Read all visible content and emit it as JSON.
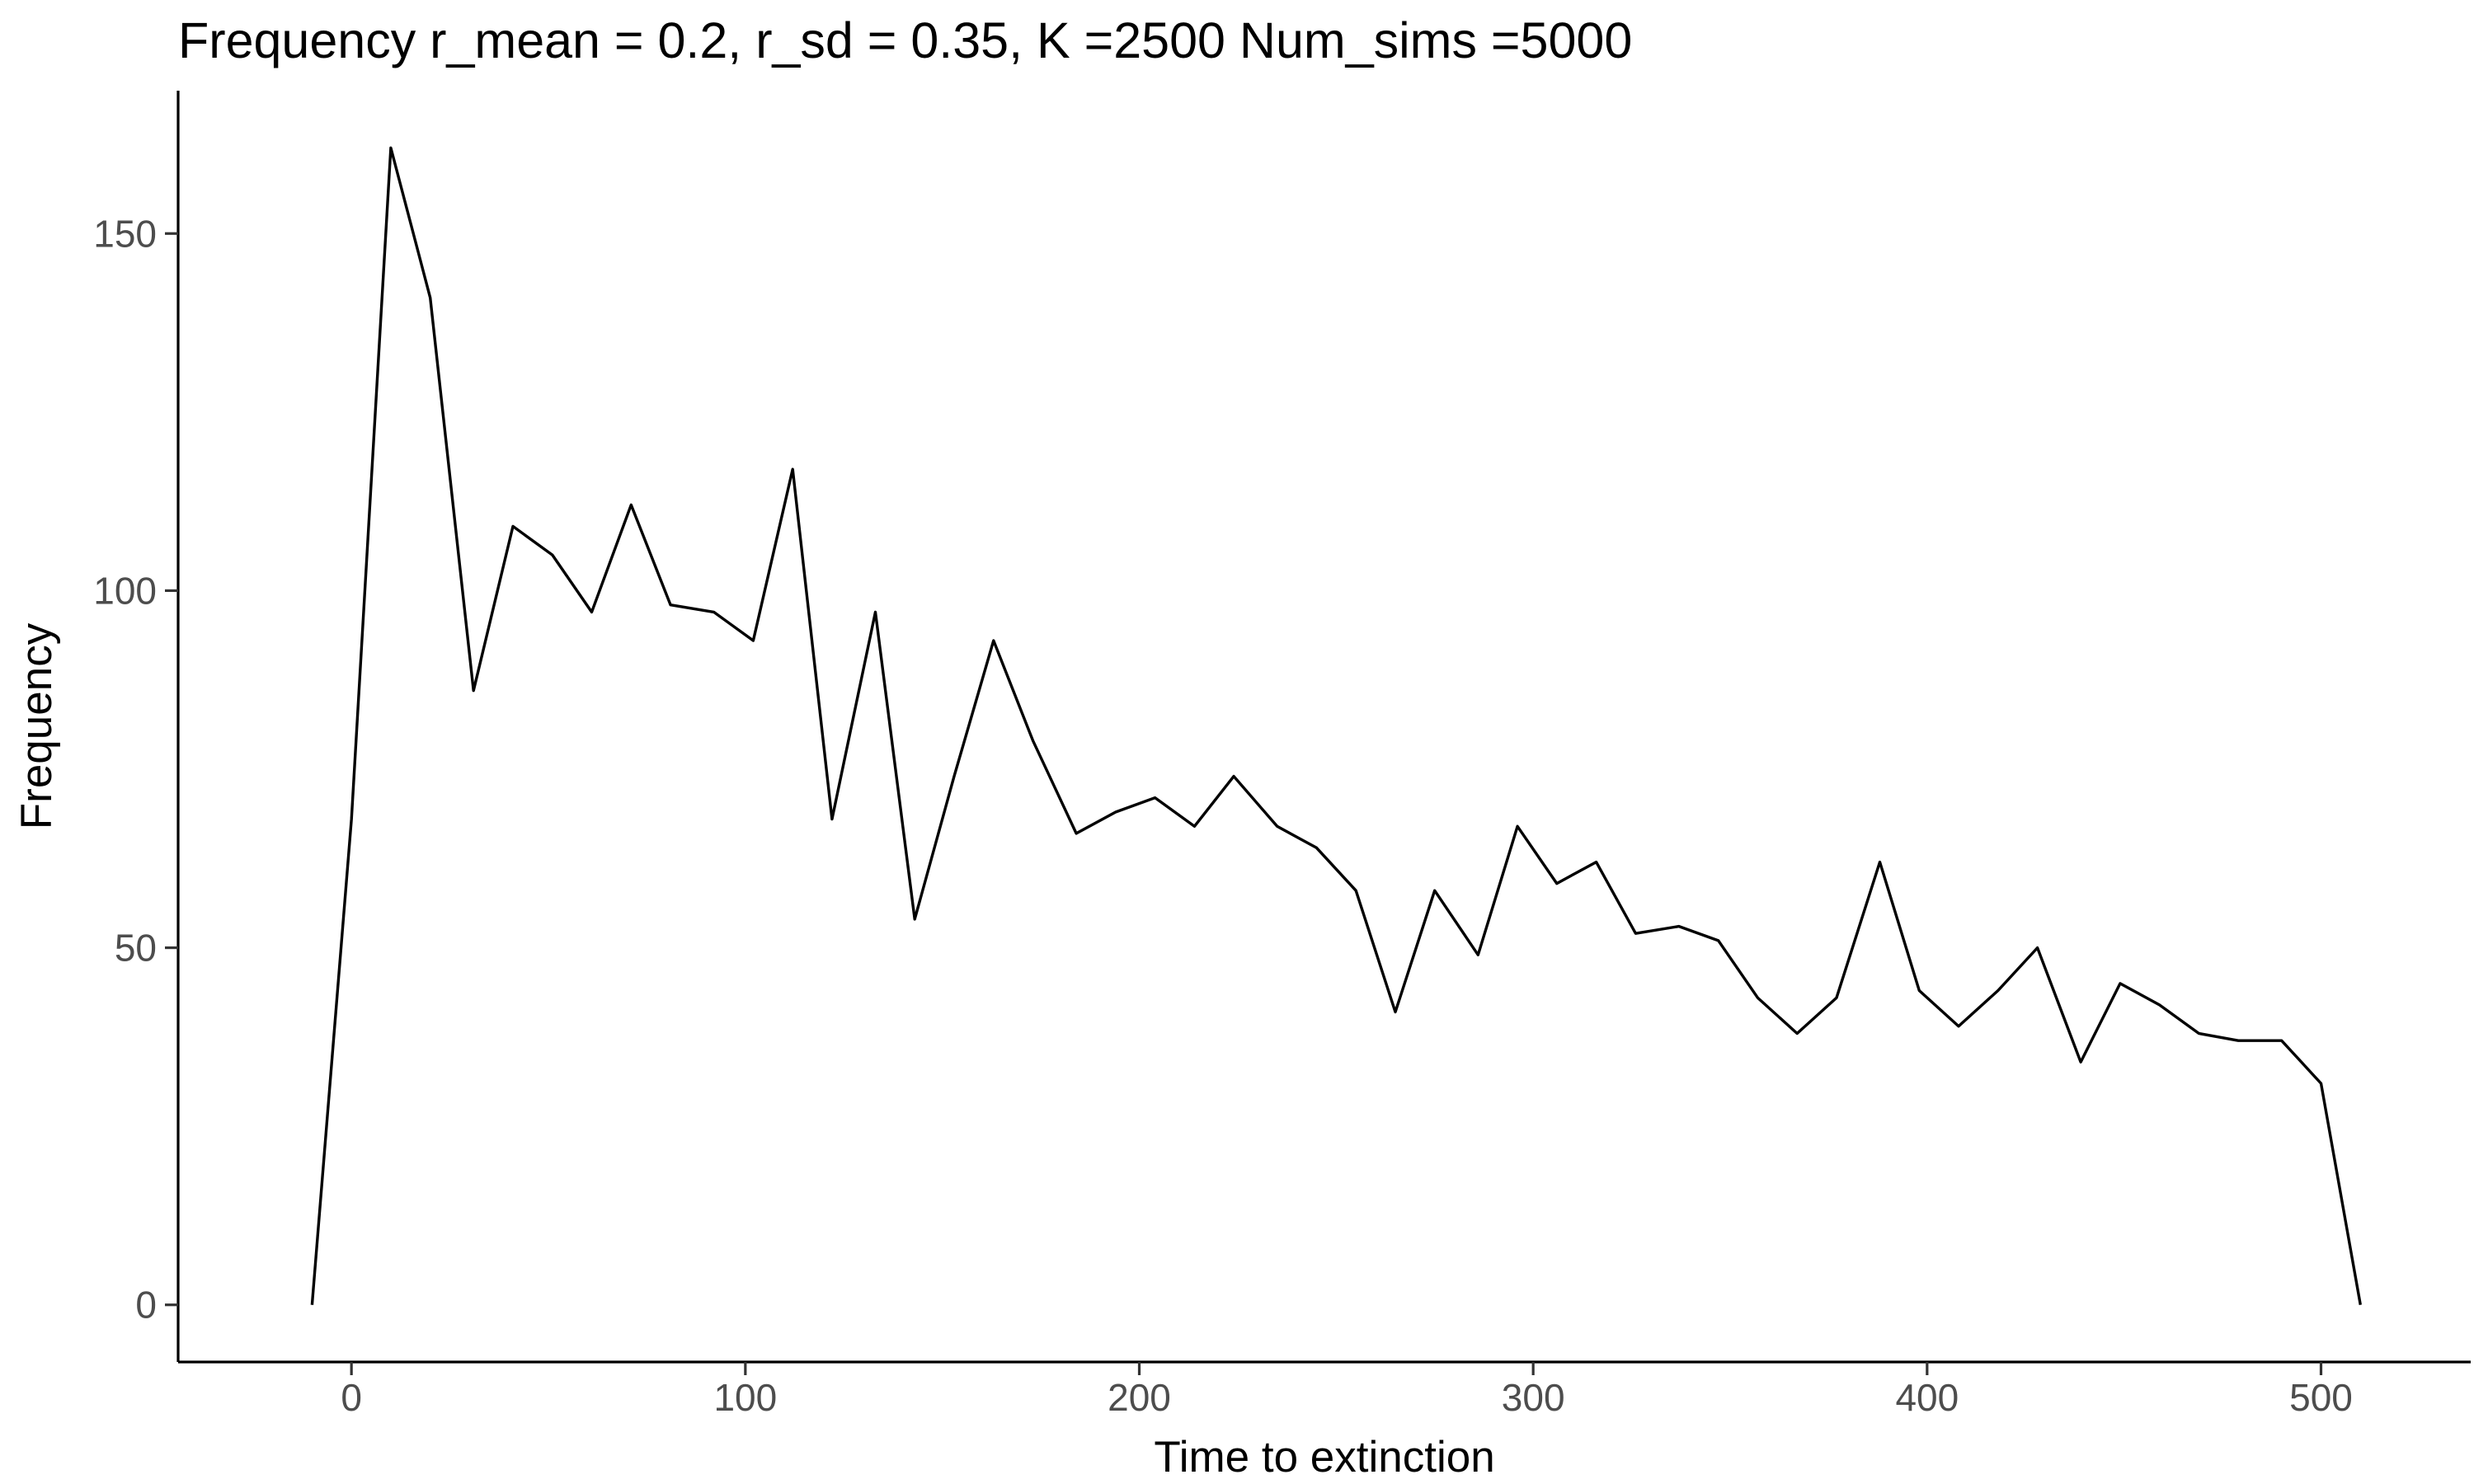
{
  "chart_data": {
    "type": "line",
    "title": "Frequency r_mean = 0.2, r_sd = 0.35, K =2500 Num_sims =5000",
    "xlabel": "Time to extinction",
    "ylabel": "Frequency",
    "xlim": [
      -44,
      538
    ],
    "ylim": [
      -8,
      170
    ],
    "x_ticks": [
      0,
      100,
      200,
      300,
      400,
      500
    ],
    "x_tick_labels": [
      "0",
      "100",
      "200",
      "300",
      "400",
      "500"
    ],
    "y_ticks": [
      0,
      50,
      100,
      150
    ],
    "y_tick_labels": [
      "0",
      "50",
      "100",
      "150"
    ],
    "grid": false,
    "legend": "none",
    "line_color": "#000000",
    "series": [
      {
        "x": [
          -10,
          0,
          10,
          20,
          31,
          41,
          51,
          61,
          71,
          81,
          92,
          102,
          112,
          122,
          133,
          143,
          153,
          163,
          173,
          184,
          194,
          204,
          214,
          224,
          235,
          245,
          255,
          265,
          275,
          286,
          296,
          306,
          316,
          326,
          337,
          347,
          357,
          367,
          377,
          388,
          398,
          408,
          418,
          428,
          439,
          449,
          459,
          469,
          479,
          490,
          500,
          510
        ],
        "y": [
          0,
          68,
          162,
          141,
          86,
          109,
          105,
          97,
          112,
          98,
          97,
          93,
          117,
          68,
          97,
          54,
          74,
          93,
          79,
          66,
          69,
          71,
          67,
          74,
          67,
          64,
          58,
          41,
          58,
          49,
          67,
          59,
          62,
          52,
          53,
          51,
          43,
          38,
          43,
          62,
          44,
          39,
          44,
          50,
          34,
          45,
          42,
          38,
          37,
          37,
          31,
          0
        ]
      }
    ]
  }
}
